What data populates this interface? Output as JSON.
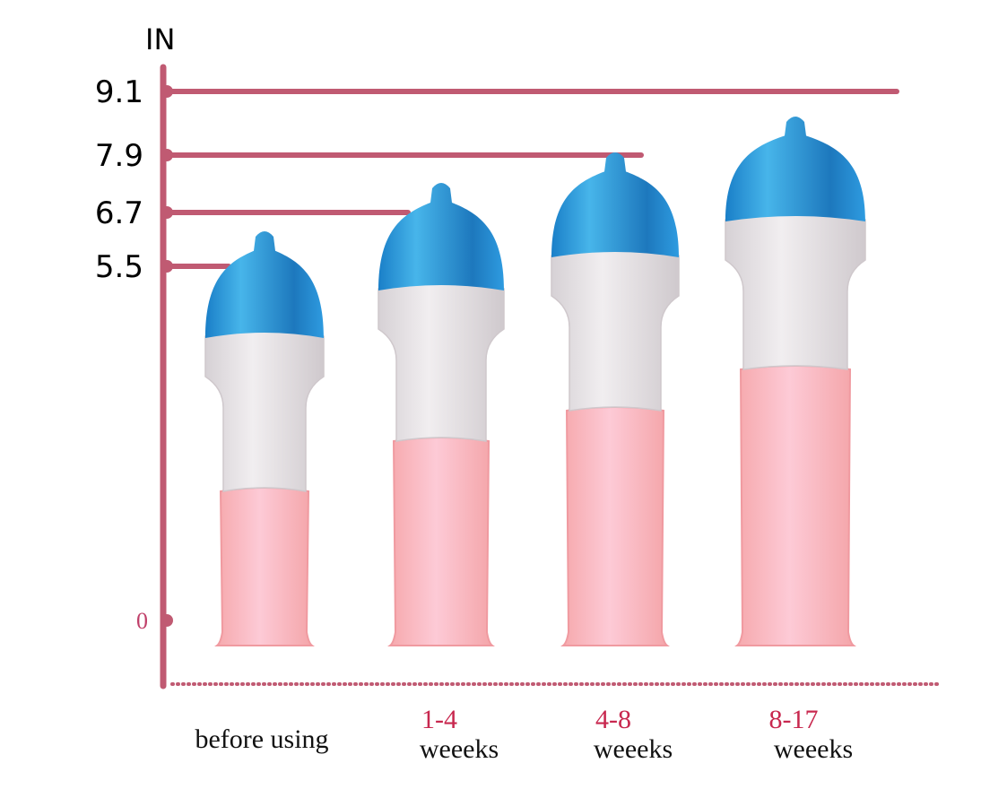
{
  "chart_data": {
    "type": "bar",
    "ylabel": "IN",
    "y_ticks": [
      "0",
      "5.5",
      "6.7",
      "7.9",
      "9.1"
    ],
    "categories": [
      {
        "line1": "before using",
        "line2": ""
      },
      {
        "line1": "1-4",
        "line2": "weeeks"
      },
      {
        "line1": "4-8",
        "line2": "weeeks"
      },
      {
        "line1": "8-17",
        "line2": "weeeks"
      }
    ],
    "values": [
      5.5,
      6.7,
      7.9,
      9.1
    ],
    "grid": false,
    "colors": {
      "axis": "#c05a72",
      "cap": "#2e9be0",
      "sleeve": "#e4e0e3",
      "body": "#f9b9c0",
      "category_accent": "#c8284f",
      "category_text": "#111111"
    }
  }
}
